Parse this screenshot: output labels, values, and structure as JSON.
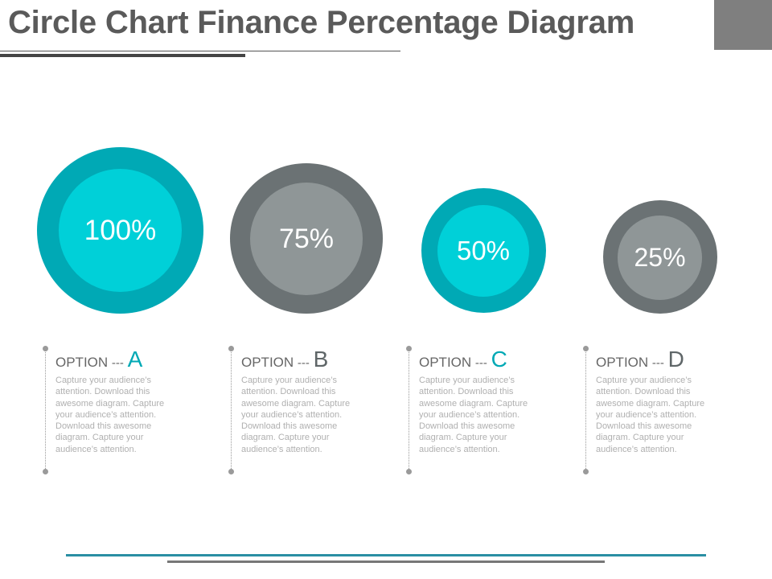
{
  "title": "Circle Chart Finance Percentage Diagram",
  "colors": {
    "teal_outer": "#00a9b5",
    "teal_inner": "#00d0d8",
    "gray_outer": "#6b7274",
    "gray_inner": "#8f9697",
    "text_muted": "#b0b0b0"
  },
  "items": [
    {
      "value": "100%",
      "option_label": "OPTION",
      "separator": "---",
      "letter": "A",
      "letter_color": "#00a9b5",
      "description": "Capture your audience’s attention. Download this awesome diagram. Capture your audience’s attention. Download this awesome diagram. Capture your audience’s attention."
    },
    {
      "value": "75%",
      "option_label": "OPTION",
      "separator": "---",
      "letter": "B",
      "letter_color": "#5f6668",
      "description": "Capture your audience’s attention. Download this awesome diagram. Capture your audience’s attention. Download this awesome diagram. Capture your audience’s attention."
    },
    {
      "value": "50%",
      "option_label": "OPTION",
      "separator": "---",
      "letter": "C",
      "letter_color": "#00a9b5",
      "description": "Capture your audience’s attention. Download this awesome diagram. Capture your audience’s attention. Download this awesome diagram. Capture your audience’s attention."
    },
    {
      "value": "25%",
      "option_label": "OPTION",
      "separator": "---",
      "letter": "D",
      "letter_color": "#5f6668",
      "description": "Capture your audience’s attention. Download this awesome diagram. Capture your audience’s attention. Download this awesome diagram. Capture your audience’s attention."
    }
  ]
}
